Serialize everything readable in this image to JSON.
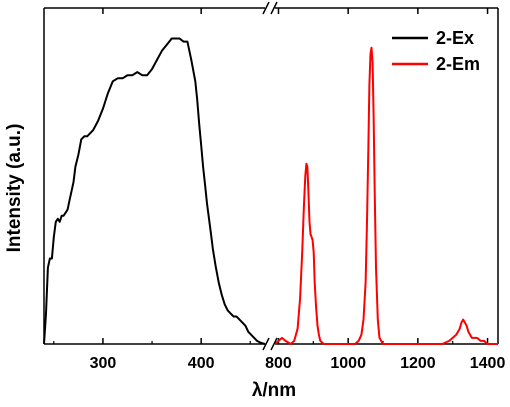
{
  "chart_data": {
    "type": "line",
    "xlabel": "λ/nm",
    "ylabel": "Intensity (a.u.)",
    "y_ticks_shown": false,
    "broken_x_axis": true,
    "segments": [
      {
        "xlim": [
          240,
          465
        ],
        "ticks": [
          300,
          400
        ]
      },
      {
        "xlim": [
          790,
          1430
        ],
        "ticks": [
          800,
          1000,
          1200,
          1400
        ]
      }
    ],
    "ylim": [
      0,
      1.1
    ],
    "legend": {
      "position": "top-right"
    },
    "series": [
      {
        "name": "2-Ex",
        "color": "#000000",
        "segment": 0,
        "x": [
          240,
          242,
          244,
          246,
          248,
          250,
          252,
          254,
          256,
          258,
          260,
          262,
          264,
          266,
          268,
          270,
          272,
          275,
          278,
          281,
          284,
          287,
          290,
          295,
          300,
          305,
          310,
          315,
          320,
          325,
          330,
          335,
          340,
          345,
          350,
          355,
          360,
          365,
          370,
          374,
          378,
          382,
          386,
          390,
          394,
          396,
          398,
          400,
          402,
          404,
          406,
          408,
          410,
          412,
          415,
          418,
          421,
          424,
          427,
          430,
          433,
          436,
          439,
          442,
          445,
          448,
          451,
          454,
          457,
          460,
          463,
          465
        ],
        "y": [
          0.0,
          0.1,
          0.25,
          0.28,
          0.28,
          0.35,
          0.4,
          0.41,
          0.4,
          0.42,
          0.42,
          0.43,
          0.44,
          0.47,
          0.5,
          0.53,
          0.58,
          0.62,
          0.67,
          0.68,
          0.68,
          0.69,
          0.7,
          0.73,
          0.77,
          0.82,
          0.86,
          0.87,
          0.87,
          0.88,
          0.88,
          0.89,
          0.88,
          0.88,
          0.9,
          0.93,
          0.96,
          0.98,
          1.0,
          1.0,
          1.0,
          0.99,
          0.99,
          0.93,
          0.86,
          0.8,
          0.72,
          0.65,
          0.58,
          0.52,
          0.46,
          0.41,
          0.36,
          0.31,
          0.25,
          0.2,
          0.16,
          0.13,
          0.11,
          0.1,
          0.09,
          0.09,
          0.08,
          0.07,
          0.06,
          0.04,
          0.03,
          0.02,
          0.01,
          0.005,
          0.002,
          0.0
        ]
      },
      {
        "name": "2-Em",
        "color": "#ff0000",
        "segment": 1,
        "x": [
          790,
          800,
          810,
          820,
          835,
          845,
          855,
          862,
          868,
          873,
          877,
          880,
          883,
          886,
          889,
          892,
          895,
          898,
          901,
          904,
          908,
          912,
          916,
          920,
          930,
          940,
          960,
          980,
          1000,
          1020,
          1030,
          1038,
          1044,
          1050,
          1054,
          1058,
          1061,
          1064,
          1067,
          1070,
          1073,
          1076,
          1080,
          1085,
          1090,
          1100,
          1120,
          1150,
          1180,
          1210,
          1240,
          1270,
          1290,
          1300,
          1310,
          1320,
          1325,
          1330,
          1335,
          1340,
          1345,
          1350,
          1355,
          1360,
          1370,
          1380,
          1390,
          1400,
          1410,
          1420,
          1430
        ],
        "y": [
          0.0,
          0.01,
          0.02,
          0.01,
          0.0,
          0.01,
          0.05,
          0.15,
          0.3,
          0.45,
          0.55,
          0.59,
          0.58,
          0.5,
          0.4,
          0.36,
          0.35,
          0.34,
          0.3,
          0.2,
          0.12,
          0.06,
          0.03,
          0.01,
          0.0,
          0.0,
          0.0,
          0.0,
          0.0,
          0.0,
          0.01,
          0.03,
          0.08,
          0.2,
          0.4,
          0.65,
          0.85,
          0.95,
          0.97,
          0.92,
          0.75,
          0.5,
          0.25,
          0.08,
          0.02,
          0.0,
          0.0,
          0.0,
          0.0,
          0.0,
          0.0,
          0.0,
          0.01,
          0.02,
          0.03,
          0.05,
          0.07,
          0.08,
          0.07,
          0.06,
          0.04,
          0.03,
          0.02,
          0.02,
          0.02,
          0.01,
          0.01,
          0.0,
          0.0,
          0.0,
          0.0
        ]
      }
    ]
  }
}
